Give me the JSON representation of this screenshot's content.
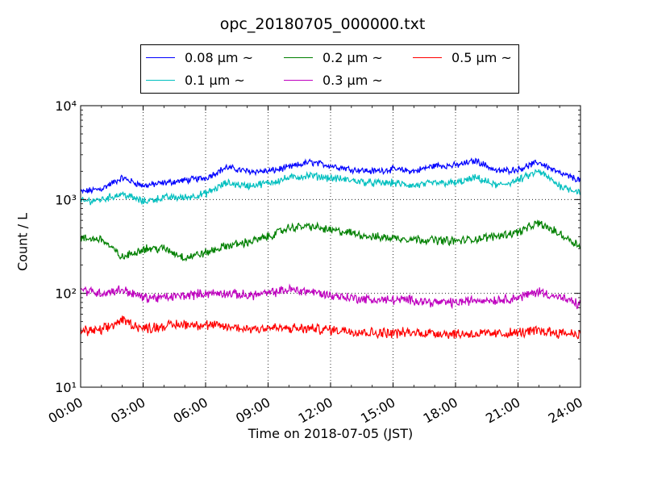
{
  "chart_data": {
    "type": "line",
    "title": "opc_20180705_000000.txt",
    "xlabel": "Time on 2018-07-05 (JST)",
    "ylabel": "Count / L",
    "yscale": "log",
    "ylim": [
      10,
      10000
    ],
    "xlim_hours": [
      0,
      24
    ],
    "x_ticks": [
      "00:00",
      "03:00",
      "06:00",
      "09:00",
      "12:00",
      "15:00",
      "18:00",
      "21:00",
      "24:00"
    ],
    "y_ticks": [
      "10¹",
      "10²",
      "10³",
      "10⁴"
    ],
    "grid": true,
    "legend_position": "top",
    "x_hours": [
      0,
      1,
      2,
      3,
      4,
      5,
      6,
      7,
      8,
      9,
      10,
      11,
      12,
      13,
      14,
      15,
      16,
      17,
      18,
      19,
      20,
      21,
      22,
      23,
      24
    ],
    "series": [
      {
        "name": "0.08 μm ~",
        "color": "#0000ff",
        "values": [
          1200,
          1300,
          1700,
          1400,
          1500,
          1600,
          1700,
          2200,
          2000,
          2000,
          2200,
          2500,
          2300,
          2100,
          2000,
          2100,
          2000,
          2300,
          2300,
          2600,
          2000,
          2100,
          2500,
          1900,
          1600
        ]
      },
      {
        "name": "0.1 μm ~",
        "color": "#00bfbf",
        "values": [
          950,
          1000,
          1150,
          950,
          1050,
          1050,
          1150,
          1500,
          1400,
          1500,
          1700,
          1800,
          1700,
          1600,
          1500,
          1500,
          1400,
          1500,
          1500,
          1700,
          1400,
          1600,
          2000,
          1400,
          1200
        ]
      },
      {
        "name": "0.2 μm ~",
        "color": "#008000",
        "values": [
          380,
          380,
          240,
          300,
          300,
          240,
          270,
          320,
          350,
          400,
          500,
          520,
          470,
          440,
          400,
          390,
          380,
          370,
          360,
          380,
          410,
          450,
          560,
          430,
          320
        ]
      },
      {
        "name": "0.3 μm ~",
        "color": "#bf00bf",
        "values": [
          110,
          100,
          110,
          90,
          90,
          95,
          100,
          100,
          95,
          100,
          110,
          105,
          95,
          90,
          85,
          85,
          85,
          80,
          80,
          85,
          85,
          90,
          105,
          90,
          75
        ]
      },
      {
        "name": "0.5 μm ~",
        "color": "#ff0000",
        "values": [
          40,
          40,
          52,
          42,
          45,
          47,
          46,
          44,
          42,
          43,
          42,
          42,
          41,
          40,
          38,
          38,
          38,
          38,
          37,
          37,
          37,
          38,
          40,
          38,
          37
        ]
      }
    ]
  }
}
